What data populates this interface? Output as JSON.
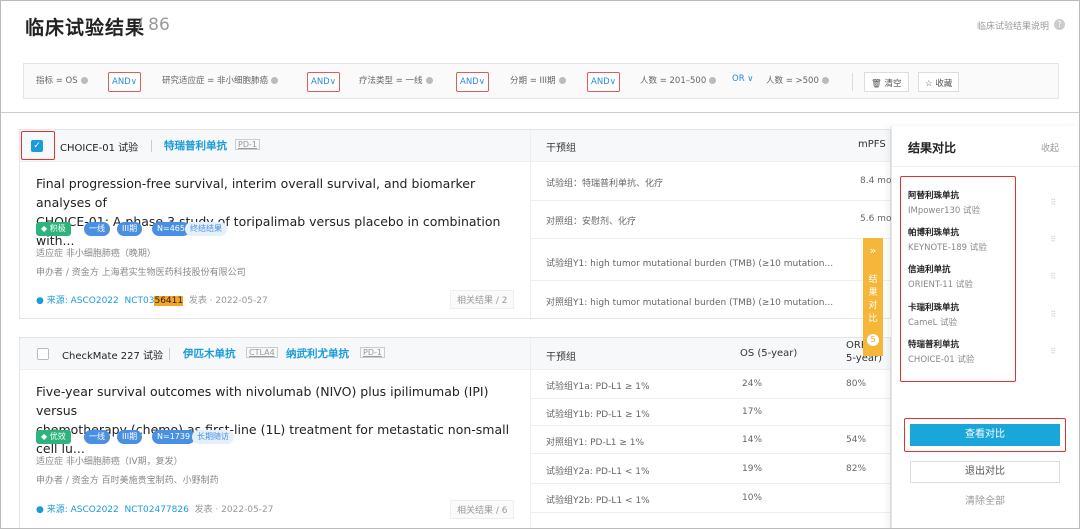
{
  "header": {
    "title": "临床试验结果",
    "count": "/ 86",
    "help": "临床试验结果说明"
  },
  "filters": {
    "chips": [
      "指标 = OS",
      "研究适应症 = 非小细胞肺癌",
      "疗法类型 = 一线",
      "分期 = III期",
      "人数 = 201–500",
      "人数 = >500"
    ],
    "and_label": "AND∨",
    "or_label": "OR ∨",
    "clear": "清空",
    "save": "收藏"
  },
  "cards": [
    {
      "trial": "CHOICE-01 试验",
      "drug": "特瑞普利单抗",
      "target": "PD-1",
      "title1": "Final progression-free survival, interim overall survival, and biomarker analyses of",
      "title2": "CHOICE-01: A phase 3 study of toripalimab versus placebo in combination with...",
      "grade": "积极",
      "line": "一线",
      "phase": "III期",
      "n": "N=465",
      "status": "终结结果",
      "indication": "适应症  非小细胞肺癌（晚期）",
      "sponsor": "申办者 / 资金方  上海君实生物医药科技股份有限公司",
      "source": "来源: ASCO2022",
      "nct_a": "NCT03",
      "nct_hl": "56411",
      "published": "发表 · 2022-05-27",
      "related": "相关结果 / 2",
      "col_group": "干预组",
      "col_metric": "mPFS",
      "rows": [
        {
          "g": "试验组：特瑞普利单抗、化疗",
          "v": "8.4 mo"
        },
        {
          "g": "对照组：安慰剂、化疗",
          "v": "5.6 mo"
        },
        {
          "g": "试验组Y1: high tumor mutational burden (TMB) (≥10 mutation...",
          "v": ""
        },
        {
          "g": "对照组Y1: high tumor mutational burden (TMB) (≥10 mutation...",
          "v": ""
        }
      ]
    },
    {
      "trial": "CheckMate 227 试验",
      "drug": "伊匹木单抗",
      "target": "CTLA4",
      "drug2": "纳武利尤单抗",
      "target2": "PD-1",
      "title1": "Five-year survival outcomes with nivolumab (NIVO) plus ipilimumab (IPI) versus",
      "title2": "chemotherapy (chemo) as first-line (1L) treatment for metastatic non-small cell lu...",
      "grade": "优效",
      "line": "一线",
      "phase": "III期",
      "n": "N=1739",
      "status": "长期随访",
      "indication": "适应症  非小细胞肺癌（IV期，复发）",
      "sponsor": "申办者 / 资金方  百时美施贵宝制药、小野制药",
      "source": "来源: ASCO2022",
      "nct": "NCT02477826",
      "published": "发表 · 2022-05-27",
      "related": "相关结果 / 6",
      "col_group": "干预组",
      "col_os": "OS (5-year)",
      "col_orr": "ORR",
      "col_orr2": "5-year)",
      "rows": [
        {
          "g": "试验组Y1a: PD-L1 ≥ 1%",
          "v": "24%",
          "v2": "80%"
        },
        {
          "g": "试验组Y1b: PD-L1 ≥ 1%",
          "v": "17%",
          "v2": ""
        },
        {
          "g": "对照组Y1: PD-L1 ≥ 1%",
          "v": "14%",
          "v2": "54%"
        },
        {
          "g": "试验组Y2a: PD-L1 < 1%",
          "v": "19%",
          "v2": "82%"
        },
        {
          "g": "试验组Y2b: PD-L1 < 1%",
          "v": "10%",
          "v2": ""
        }
      ]
    }
  ],
  "sidetab": {
    "arrow": "»",
    "c1": "结",
    "c2": "果",
    "c3": "对",
    "c4": "比",
    "count": "5"
  },
  "panel": {
    "title": "结果对比",
    "collapse": "收起",
    "items": [
      {
        "drug": "阿替利珠单抗",
        "trial": "IMpower130 试验"
      },
      {
        "drug": "帕博利珠单抗",
        "trial": "KEYNOTE-189 试验"
      },
      {
        "drug": "信迪利单抗",
        "trial": "ORIENT-11 试验"
      },
      {
        "drug": "卡瑞利珠单抗",
        "trial": "CameL 试验"
      },
      {
        "drug": "特瑞普利单抗",
        "trial": "CHOICE-01 试验"
      }
    ],
    "view": "查看对比",
    "exit": "退出对比",
    "clear": "清除全部"
  }
}
